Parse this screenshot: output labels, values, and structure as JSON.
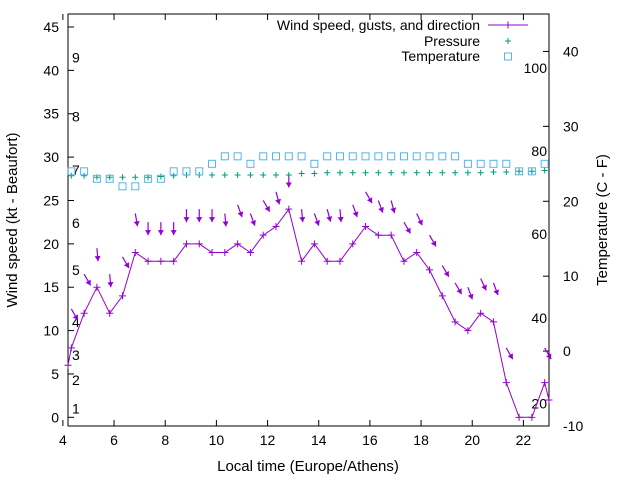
{
  "chart_data": {
    "type": "line",
    "title": "",
    "xlabel": "Local time (Europe/Athens)",
    "ylabel": "Wind speed (kt - Beaufort)",
    "y2label": "Temperature (C - F)",
    "xlim": [
      4.2,
      23
    ],
    "ylim": [
      -1,
      46.5
    ],
    "y2lim": [
      -10,
      45
    ],
    "x_ticks": [
      4,
      6,
      8,
      10,
      12,
      14,
      16,
      18,
      20,
      22
    ],
    "y_ticks": [
      0,
      5,
      10,
      15,
      20,
      25,
      30,
      35,
      40,
      45
    ],
    "y2_ticks": [
      -10,
      0,
      10,
      20,
      30,
      40
    ],
    "beaufort_scale": [
      {
        "label": "1",
        "y": 1
      },
      {
        "label": "2",
        "y": 4.3
      },
      {
        "label": "3",
        "y": 7.2
      },
      {
        "label": "4",
        "y": 11
      },
      {
        "label": "5",
        "y": 17
      },
      {
        "label": "6",
        "y": 22.4
      },
      {
        "label": "7",
        "y": 28.5
      },
      {
        "label": "8",
        "y": 34.7
      },
      {
        "label": "9",
        "y": 41.5
      }
    ],
    "fahrenheit_scale": [
      {
        "label": "20",
        "y2": -7
      },
      {
        "label": "40",
        "y2": 4.4
      },
      {
        "label": "60",
        "y2": 15.6
      },
      {
        "label": "80",
        "y2": 26.7
      },
      {
        "label": "100",
        "y2": 37.8
      }
    ],
    "legend_placement": "top-right",
    "grid": false,
    "colors": {
      "wind": "#9400d3",
      "pressure": "#009e73",
      "temperature": "#56b4e9"
    },
    "series": [
      {
        "name": "Wind speed, gusts, and direction",
        "axis": "left",
        "x": [
          4.2,
          4.33,
          4.83,
          5.33,
          5.83,
          6.33,
          6.83,
          7.33,
          7.83,
          8.33,
          8.83,
          9.33,
          9.83,
          10.33,
          10.83,
          11.33,
          11.83,
          12.33,
          12.83,
          13.33,
          13.83,
          14.33,
          14.83,
          15.33,
          15.83,
          16.33,
          16.83,
          17.33,
          17.83,
          18.33,
          18.83,
          19.33,
          19.83,
          20.33,
          20.83,
          21.33,
          21.83,
          22.33,
          22.83,
          23
        ],
        "values": [
          6,
          8,
          12,
          15,
          12,
          14,
          19,
          18,
          18,
          18,
          20,
          20,
          19,
          19,
          20,
          19,
          21,
          22,
          24,
          18,
          20,
          18,
          18,
          20,
          22,
          21,
          21,
          18,
          19,
          17,
          14,
          11,
          10,
          12,
          11,
          4,
          0,
          0,
          4,
          2
        ]
      },
      {
        "name": "Pressure",
        "axis": "right",
        "x": [
          4.33,
          4.83,
          5.33,
          5.83,
          6.33,
          6.83,
          7.33,
          7.83,
          8.33,
          8.83,
          9.33,
          9.83,
          10.33,
          10.83,
          11.33,
          11.83,
          12.33,
          12.83,
          13.33,
          13.83,
          14.33,
          14.83,
          15.33,
          15.83,
          16.33,
          16.83,
          17.33,
          17.83,
          18.33,
          18.83,
          19.33,
          19.83,
          20.33,
          20.83,
          21.33,
          21.83,
          22.33,
          22.83
        ],
        "values": [
          23.4,
          23.4,
          23.2,
          23.2,
          23.2,
          23.2,
          23.2,
          23.3,
          23.4,
          23.5,
          23.5,
          23.5,
          23.5,
          23.5,
          23.5,
          23.5,
          23.5,
          23.5,
          23.7,
          23.7,
          23.8,
          23.8,
          23.8,
          23.8,
          23.8,
          23.8,
          23.8,
          23.8,
          23.8,
          23.8,
          23.8,
          23.8,
          23.8,
          23.9,
          23.9,
          24.0,
          24.0,
          24.1
        ]
      },
      {
        "name": "Temperature",
        "axis": "right",
        "x": [
          4.33,
          4.83,
          5.33,
          5.83,
          6.33,
          6.83,
          7.33,
          7.83,
          8.33,
          8.83,
          9.33,
          9.83,
          10.33,
          10.83,
          11.33,
          11.83,
          12.33,
          12.83,
          13.33,
          13.83,
          14.33,
          14.83,
          15.33,
          15.83,
          16.33,
          16.83,
          17.33,
          17.83,
          18.33,
          18.83,
          19.33,
          19.83,
          20.33,
          20.83,
          21.33,
          21.83,
          22.33,
          22.83
        ],
        "values": [
          24,
          24,
          23,
          23,
          22,
          22,
          23,
          23,
          24,
          24,
          24,
          25,
          26,
          26,
          25,
          26,
          26,
          26,
          26,
          25,
          26,
          26,
          26,
          26,
          26,
          26,
          26,
          26,
          26,
          26,
          26,
          25,
          25,
          25,
          25,
          24,
          24,
          25
        ]
      }
    ],
    "gust_arrows": [
      {
        "x": 4.33,
        "y": 12.5,
        "dir": 330
      },
      {
        "x": 4.83,
        "y": 16.5,
        "dir": 330
      },
      {
        "x": 5.33,
        "y": 19.5,
        "dir": 355
      },
      {
        "x": 5.83,
        "y": 16.5,
        "dir": 355
      },
      {
        "x": 6.33,
        "y": 18.5,
        "dir": 330
      },
      {
        "x": 6.83,
        "y": 23.5,
        "dir": 350
      },
      {
        "x": 7.33,
        "y": 22.5,
        "dir": 0
      },
      {
        "x": 7.83,
        "y": 22.5,
        "dir": 0
      },
      {
        "x": 8.33,
        "y": 22.5,
        "dir": 0
      },
      {
        "x": 8.83,
        "y": 24,
        "dir": 0
      },
      {
        "x": 9.33,
        "y": 24,
        "dir": 0
      },
      {
        "x": 9.83,
        "y": 24,
        "dir": 0
      },
      {
        "x": 10.33,
        "y": 23.5,
        "dir": 355
      },
      {
        "x": 10.83,
        "y": 24.5,
        "dir": 340
      },
      {
        "x": 11.33,
        "y": 23.5,
        "dir": 340
      },
      {
        "x": 11.83,
        "y": 25,
        "dir": 330
      },
      {
        "x": 12.33,
        "y": 26,
        "dir": 345
      },
      {
        "x": 12.83,
        "y": 28,
        "dir": 0
      },
      {
        "x": 13.33,
        "y": 24,
        "dir": 355
      },
      {
        "x": 13.83,
        "y": 23.5,
        "dir": 340
      },
      {
        "x": 14.33,
        "y": 24,
        "dir": 345
      },
      {
        "x": 14.83,
        "y": 24,
        "dir": 355
      },
      {
        "x": 15.33,
        "y": 24.5,
        "dir": 340
      },
      {
        "x": 15.83,
        "y": 26,
        "dir": 330
      },
      {
        "x": 16.33,
        "y": 25,
        "dir": 340
      },
      {
        "x": 16.83,
        "y": 25,
        "dir": 345
      },
      {
        "x": 17.33,
        "y": 22.5,
        "dir": 330
      },
      {
        "x": 17.83,
        "y": 23.5,
        "dir": 335
      },
      {
        "x": 18.33,
        "y": 21,
        "dir": 330
      },
      {
        "x": 18.83,
        "y": 17.5,
        "dir": 330
      },
      {
        "x": 19.33,
        "y": 15.5,
        "dir": 330
      },
      {
        "x": 19.83,
        "y": 15,
        "dir": 340
      },
      {
        "x": 20.33,
        "y": 16,
        "dir": 335
      },
      {
        "x": 20.83,
        "y": 15.5,
        "dir": 340
      },
      {
        "x": 21.33,
        "y": 8,
        "dir": 330
      },
      {
        "x": 22.83,
        "y": 8,
        "dir": 330
      }
    ]
  }
}
